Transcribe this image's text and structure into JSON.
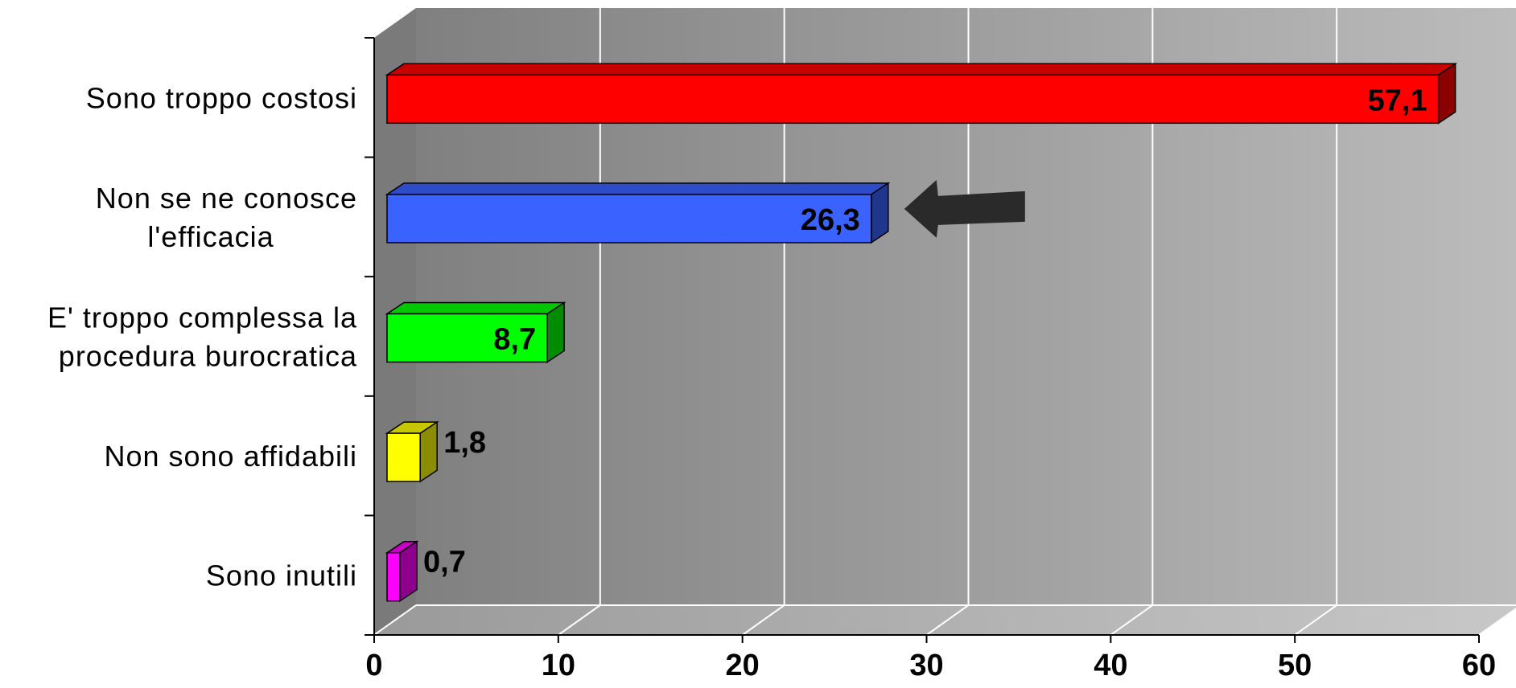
{
  "chart_data": {
    "type": "bar",
    "orientation": "horizontal",
    "style": "3d",
    "categories": [
      [
        "Sono troppo costosi"
      ],
      [
        "Non se ne conosce",
        "l'efficacia"
      ],
      [
        "E' troppo complessa la",
        "procedura burocratica"
      ],
      [
        "Non sono affidabili"
      ],
      [
        "Sono inutili"
      ]
    ],
    "values": [
      57.1,
      26.3,
      8.7,
      1.8,
      0.7
    ],
    "value_labels": [
      "57,1",
      "26,3",
      "8,7",
      "1,8",
      "0,7"
    ],
    "colors": [
      "#ff0000",
      "#3a62ff",
      "#00ff00",
      "#ffff00",
      "#ff00ff"
    ],
    "xlim": [
      0,
      60
    ],
    "ticks": [
      0,
      10,
      20,
      30,
      40,
      50,
      60
    ],
    "tick_labels": [
      "0",
      "10",
      "20",
      "30",
      "40",
      "50",
      "60"
    ],
    "grid": true,
    "annotation": {
      "type": "arrow",
      "points_to_category_index": 1
    }
  }
}
